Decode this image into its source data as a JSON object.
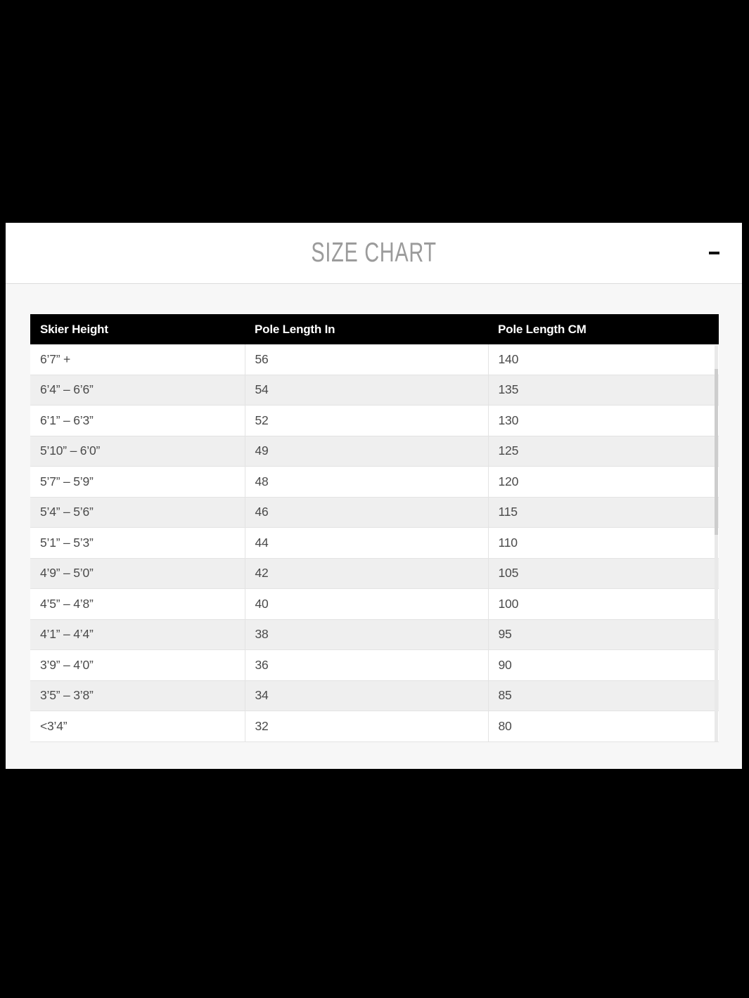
{
  "modal": {
    "title": "SIZE CHART",
    "collapse_label": "minus"
  },
  "table": {
    "columns": [
      "Skier Height",
      "Pole Length In",
      "Pole Length CM"
    ],
    "rows": [
      [
        "6’7” +",
        "56",
        "140"
      ],
      [
        "6’4” – 6’6”",
        "54",
        "135"
      ],
      [
        "6’1” – 6’3”",
        "52",
        "130"
      ],
      [
        "5’10” – 6’0”",
        "49",
        "125"
      ],
      [
        "5’7” – 5’9”",
        "48",
        "120"
      ],
      [
        "5’4” – 5’6”",
        "46",
        "115"
      ],
      [
        "5’1” – 5’3”",
        "44",
        "110"
      ],
      [
        "4’9” – 5’0”",
        "42",
        "105"
      ],
      [
        "4’5” – 4’8”",
        "40",
        "100"
      ],
      [
        "4’1” – 4’4”",
        "38",
        "95"
      ],
      [
        "3’9” – 4’0”",
        "36",
        "90"
      ],
      [
        "3’5” – 3’8”",
        "34",
        "85"
      ],
      [
        "<3’4”",
        "32",
        "80"
      ]
    ]
  },
  "colors": {
    "page_background": "#000000",
    "panel_background": "#f7f7f7",
    "header_background": "#ffffff",
    "title_text": "#9b9b9b",
    "table_header_background": "#000000",
    "table_header_text": "#ffffff",
    "row_background": "#ffffff",
    "row_alt_background": "#efefef",
    "cell_text": "#4a4a4a",
    "border": "#e3e3e3"
  }
}
